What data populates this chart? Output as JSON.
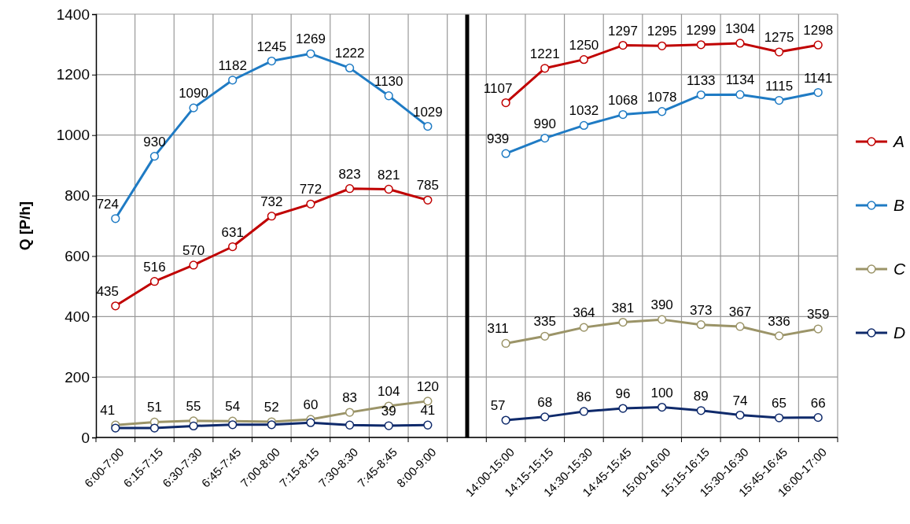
{
  "chart_data": [
    {
      "type": "line",
      "ylabel": "Q [P/h]",
      "categories": [
        "6:00-7:00",
        "6:15-7:15",
        "6:30-7:30",
        "6:45-7:45",
        "7:00-8:00",
        "7:15-8:15",
        "7:30-8:30",
        "7:45-8:45",
        "8:00-9:00"
      ],
      "series": [
        {
          "color": "#c00000",
          "values": [
            435,
            516,
            570,
            631,
            732,
            772,
            823,
            821,
            785
          ],
          "value_labels": [
            "435",
            "516",
            "570",
            "631",
            "732",
            "772",
            "823",
            "821",
            "785"
          ]
        },
        {
          "color": "#1f7bc4",
          "values": [
            724,
            930,
            1090,
            1182,
            1245,
            1269,
            1222,
            1130,
            1029
          ],
          "value_labels": [
            "724",
            "930",
            "1090",
            "1182",
            "1245",
            "1269",
            "1222",
            "1130",
            "1029"
          ]
        },
        {
          "color": "#9b9468",
          "values": [
            41,
            51,
            55,
            54,
            52,
            60,
            83,
            104,
            120
          ],
          "value_labels": [
            "41",
            "51",
            "55",
            "54",
            "52",
            "60",
            "83",
            "104",
            "120"
          ]
        },
        {
          "color": "#0f2a6b",
          "values": [
            31,
            31,
            38,
            42,
            42,
            49,
            41,
            39,
            41
          ],
          "value_labels": [
            null,
            null,
            null,
            null,
            null,
            null,
            null,
            "39",
            "41"
          ]
        }
      ],
      "ylim": [
        0,
        1400
      ],
      "yticks": [
        0,
        200,
        400,
        600,
        800,
        1000,
        1200,
        1400
      ],
      "grid": true,
      "marker": "circle",
      "line_style": "solid"
    },
    {
      "type": "line",
      "categories": [
        "14:00-15:00",
        "14:15-15:15",
        "14:30-15:30",
        "14:45-15:45",
        "15:00-16:00",
        "15:15-16:15",
        "15:30-16:30",
        "15:45-16:45",
        "16:00-17:00"
      ],
      "series": [
        {
          "name": "A",
          "color": "#c00000",
          "values": [
            1107,
            1221,
            1250,
            1297,
            1295,
            1299,
            1304,
            1275,
            1298
          ],
          "value_labels": [
            "1107",
            "1221",
            "1250",
            "1297",
            "1295",
            "1299",
            "1304",
            "1275",
            "1298"
          ]
        },
        {
          "name": "B",
          "color": "#1f7bc4",
          "values": [
            939,
            990,
            1032,
            1068,
            1078,
            1133,
            1134,
            1115,
            1141
          ],
          "value_labels": [
            "939",
            "990",
            "1032",
            "1068",
            "1078",
            "1133",
            "1134",
            "1115",
            "1141"
          ]
        },
        {
          "name": "C",
          "color": "#9b9468",
          "values": [
            311,
            335,
            364,
            381,
            390,
            373,
            367,
            336,
            359
          ],
          "value_labels": [
            "311",
            "335",
            "364",
            "381",
            "390",
            "373",
            "367",
            "336",
            "359"
          ]
        },
        {
          "name": "D",
          "color": "#0f2a6b",
          "values": [
            57,
            68,
            86,
            96,
            100,
            89,
            74,
            65,
            66
          ],
          "value_labels": [
            "57",
            "68",
            "86",
            "96",
            "100",
            "89",
            "74",
            "65",
            "66"
          ]
        }
      ],
      "ylim": [
        0,
        1400
      ],
      "yticks": [
        0,
        200,
        400,
        600,
        800,
        1000,
        1200,
        1400
      ],
      "tick_labels": "x",
      "grid": true,
      "legend": "right",
      "marker": "circle",
      "line_style": "solid"
    }
  ]
}
